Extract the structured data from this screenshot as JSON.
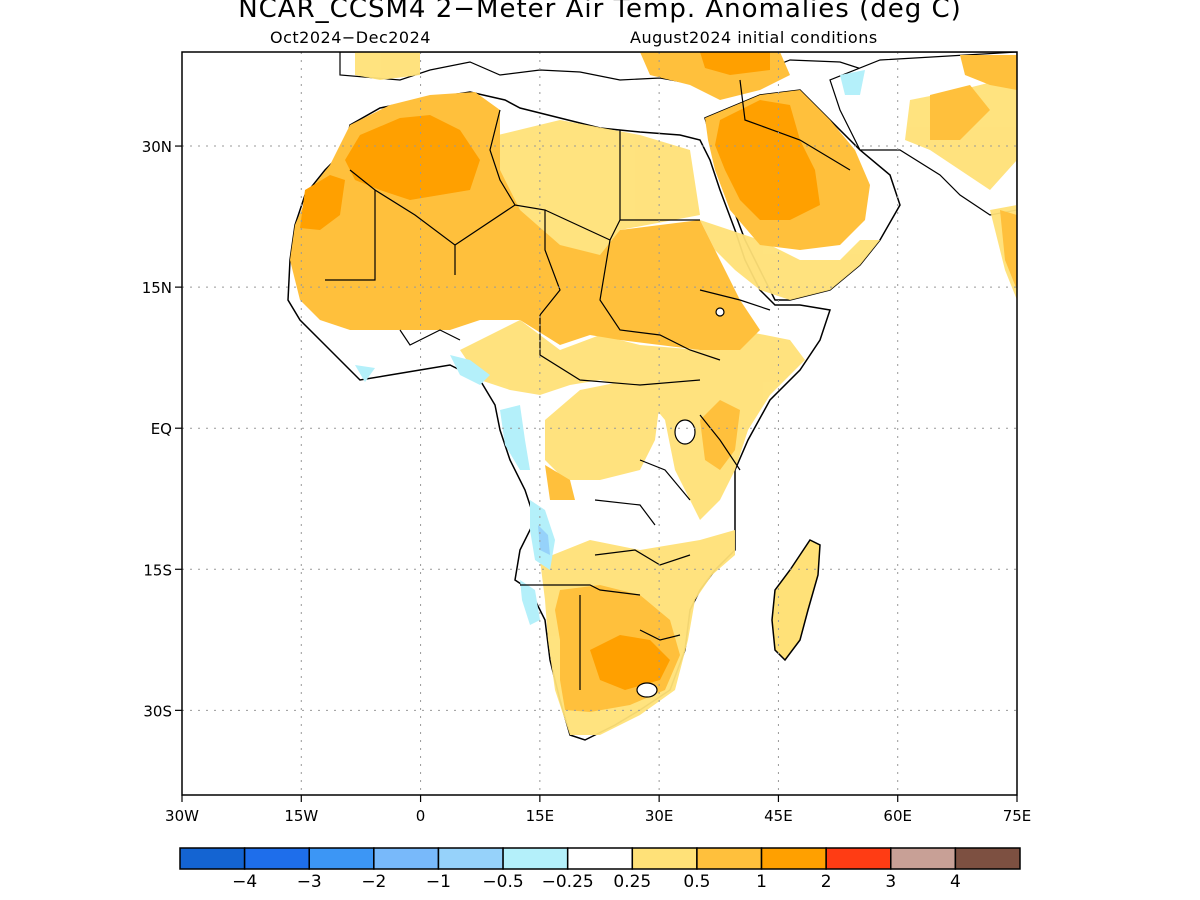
{
  "title": "NCAR_CCSM4 2−Meter Air Temp. Anomalies (deg C)",
  "subtitle_left": "Oct2024−Dec2024",
  "subtitle_right": "August2024 initial conditions",
  "map": {
    "lon_range": [
      -30,
      75
    ],
    "lat_range": [
      -39,
      40
    ],
    "x_ticks": [
      "30W",
      "15W",
      "0",
      "15E",
      "30E",
      "45E",
      "60E",
      "75E"
    ],
    "y_ticks": [
      "30N",
      "15N",
      "EQ",
      "15S",
      "30S"
    ],
    "gridlines": true
  },
  "colorbar": {
    "labels": [
      "−4",
      "−3",
      "−2",
      "−1",
      "−0.5",
      "−0.25",
      "0.25",
      "0.5",
      "1",
      "2",
      "3",
      "4"
    ],
    "colors": [
      "#1464d2",
      "#1e6eeb",
      "#3c96f5",
      "#78b9fa",
      "#96d2fa",
      "#b4f0fa",
      "#ffffff",
      "#ffe178",
      "#ffc03c",
      "#ffa000",
      "#ff3c14",
      "#c8a096",
      "#7d5041"
    ]
  }
}
